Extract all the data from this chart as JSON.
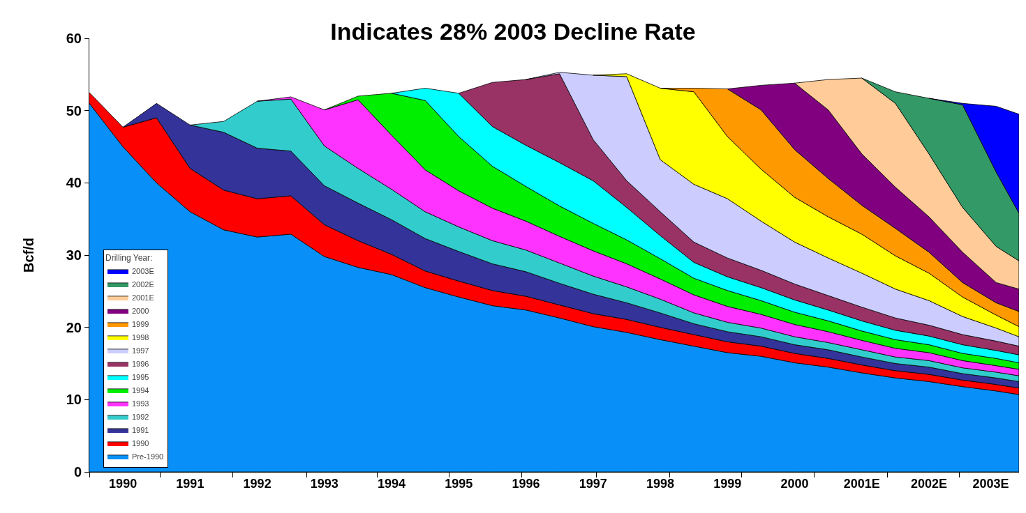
{
  "chart_data": {
    "type": "area",
    "stacked": true,
    "title": "Indicates 28% 2003 Decline Rate",
    "ylabel": "Bcf/d",
    "legend_title": "Drilling Year:",
    "legend": "bottom left",
    "grid": false,
    "x": [
      1990.0,
      1990.5,
      1991.0,
      1991.5,
      1992.0,
      1992.5,
      1993.0,
      1993.5,
      1994.0,
      1994.5,
      1995.0,
      1995.5,
      1996.0,
      1996.5,
      1997.0,
      1997.5,
      1998.0,
      1998.5,
      1999.0,
      1999.5,
      2000.0,
      2000.5,
      2001.0,
      2001.5,
      2002.0,
      2002.5,
      2003.0,
      2003.5,
      2003.84
    ],
    "xlim": [
      1990,
      2003.84
    ],
    "xticks": [
      {
        "value": 1990.5,
        "label": "1990"
      },
      {
        "value": 1991.5,
        "label": "1991"
      },
      {
        "value": 1992.5,
        "label": "1992"
      },
      {
        "value": 1993.5,
        "label": "1993"
      },
      {
        "value": 1994.5,
        "label": "1994"
      },
      {
        "value": 1995.5,
        "label": "1995"
      },
      {
        "value": 1996.5,
        "label": "1996"
      },
      {
        "value": 1997.5,
        "label": "1997"
      },
      {
        "value": 1998.5,
        "label": "1998"
      },
      {
        "value": 1999.5,
        "label": "1999"
      },
      {
        "value": 2000.5,
        "label": "2000"
      },
      {
        "value": 2001.5,
        "label": "2001E"
      },
      {
        "value": 2002.5,
        "label": "2002E"
      },
      {
        "value": 2003.42,
        "label": "2003E"
      },
      {
        "value": 1990,
        "label": null
      },
      {
        "value": 1991.05,
        "label": null
      },
      {
        "value": 1992.13,
        "label": null
      },
      {
        "value": 1993.24,
        "label": null
      },
      {
        "value": 1994.29,
        "label": null
      },
      {
        "value": 1995.36,
        "label": null
      },
      {
        "value": 1996.44,
        "label": null
      },
      {
        "value": 1997.55,
        "label": null
      },
      {
        "value": 1998.64,
        "label": null
      },
      {
        "value": 1999.71,
        "label": null
      },
      {
        "value": 2000.79,
        "label": null
      },
      {
        "value": 2001.88,
        "label": null
      },
      {
        "value": 2002.95,
        "label": null
      }
    ],
    "ylim": [
      0,
      60
    ],
    "yticks": [
      0,
      10,
      20,
      30,
      40,
      50,
      60
    ],
    "series": [
      {
        "name": "Pre-1990",
        "color": "#0890f8",
        "values": [
          51,
          45,
          40,
          36,
          33.5,
          32.5,
          32.9,
          29.8,
          28.3,
          27.3,
          25.5,
          24.2,
          23.0,
          22.4,
          21.3,
          20.1,
          19.3,
          18.3,
          17.4,
          16.5,
          16.0,
          15.1,
          14.5,
          13.7,
          13.0,
          12.5,
          11.8,
          11.2,
          10.7
        ]
      },
      {
        "name": "1990",
        "color": "#ff0000",
        "values": [
          1.5,
          2.7,
          9,
          6,
          5.5,
          5.3,
          5.3,
          4.4,
          3.7,
          2.8,
          2.3,
          2.2,
          2.1,
          1.9,
          1.8,
          1.8,
          1.8,
          1.7,
          1.6,
          1.5,
          1.4,
          1.3,
          1.2,
          1.1,
          1.0,
          1.0,
          0.9,
          0.9,
          0.9
        ]
      },
      {
        "name": "1991",
        "color": "#333399",
        "values": [
          null,
          0,
          2,
          6,
          8.0,
          7.0,
          6.2,
          5.4,
          5.2,
          4.8,
          4.5,
          4.1,
          3.7,
          3.4,
          3.0,
          2.7,
          2.3,
          2.0,
          1.5,
          1.4,
          1.3,
          1.2,
          1.2,
          1.1,
          1.0,
          1.0,
          0.9,
          0.9,
          0.9
        ]
      },
      {
        "name": "1992",
        "color": "#33cccc",
        "values": [
          null,
          null,
          null,
          0,
          1.5,
          6.5,
          7.2,
          5.5,
          4.8,
          4.2,
          3.7,
          3.4,
          3.2,
          3.0,
          2.8,
          2.5,
          2.2,
          1.9,
          1.5,
          1.3,
          1.2,
          1.1,
          1.0,
          1.0,
          0.9,
          0.9,
          0.8,
          0.8,
          0.8
        ]
      },
      {
        "name": "1993",
        "color": "#ff33ff",
        "values": [
          null,
          null,
          null,
          null,
          null,
          0,
          0.3,
          5.0,
          9.5,
          7.5,
          5.8,
          5.0,
          4.5,
          4.0,
          3.7,
          3.5,
          3.2,
          2.8,
          2.5,
          2.2,
          1.9,
          1.7,
          1.5,
          1.3,
          1.2,
          1.1,
          1.0,
          0.9,
          0.9
        ]
      },
      {
        "name": "1994",
        "color": "#00ee00",
        "values": [
          null,
          null,
          null,
          null,
          null,
          null,
          null,
          0,
          0.5,
          5.8,
          9.6,
          7.5,
          5.8,
          4.8,
          4.2,
          3.8,
          3.3,
          2.8,
          2.3,
          2.2,
          1.9,
          1.7,
          1.5,
          1.3,
          1.2,
          1.1,
          1.0,
          1.0,
          0.9
        ]
      },
      {
        "name": "1995",
        "color": "#00ffff",
        "values": [
          null,
          null,
          null,
          null,
          null,
          null,
          null,
          null,
          null,
          0,
          1.7,
          6.0,
          5.5,
          5.7,
          6.0,
          5.9,
          4.5,
          3.2,
          2.2,
          1.9,
          1.8,
          1.7,
          1.5,
          1.4,
          1.3,
          1.2,
          1.2,
          1.1,
          1.1
        ]
      },
      {
        "name": "1996",
        "color": "#993366",
        "values": [
          null,
          null,
          null,
          null,
          null,
          null,
          null,
          null,
          null,
          null,
          null,
          0,
          6.1,
          9.1,
          12.3,
          5.7,
          3.7,
          3.3,
          2.8,
          2.6,
          2.4,
          2.2,
          2.0,
          1.9,
          1.7,
          1.5,
          1.4,
          1.3,
          1.2
        ]
      },
      {
        "name": "1997",
        "color": "#ccccff",
        "values": [
          null,
          null,
          null,
          null,
          null,
          null,
          null,
          null,
          null,
          null,
          null,
          null,
          null,
          0,
          0.2,
          8.9,
          14.4,
          7.2,
          8.0,
          8.2,
          6.8,
          5.8,
          5.2,
          4.7,
          4.0,
          3.4,
          2.5,
          1.8,
          1.3
        ]
      },
      {
        "name": "1998",
        "color": "#ffff00",
        "values": [
          null,
          null,
          null,
          null,
          null,
          null,
          null,
          null,
          null,
          null,
          null,
          null,
          null,
          null,
          null,
          0,
          0.4,
          9.9,
          12.8,
          8.6,
          7.2,
          6.2,
          5.7,
          5.4,
          4.6,
          3.8,
          2.7,
          1.8,
          1.4
        ]
      },
      {
        "name": "1999",
        "color": "#ff9900",
        "values": [
          null,
          null,
          null,
          null,
          null,
          null,
          null,
          null,
          null,
          null,
          null,
          null,
          null,
          null,
          null,
          null,
          null,
          0,
          0.5,
          6.6,
          8.2,
          6.6,
          5.3,
          4.0,
          3.8,
          2.9,
          2.0,
          1.7,
          2.1
        ]
      },
      {
        "name": "2000",
        "color": "#800080",
        "values": [
          null,
          null,
          null,
          null,
          null,
          null,
          null,
          null,
          null,
          null,
          null,
          null,
          null,
          null,
          null,
          null,
          null,
          null,
          null,
          0,
          3.4,
          9.2,
          9.5,
          7.1,
          5.7,
          4.9,
          4.2,
          2.8,
          3.1
        ]
      },
      {
        "name": "2001E",
        "color": "#ffcc99",
        "values": [
          null,
          null,
          null,
          null,
          null,
          null,
          null,
          null,
          null,
          null,
          null,
          null,
          null,
          null,
          null,
          null,
          null,
          null,
          null,
          null,
          null,
          0,
          4.2,
          10.5,
          11.6,
          8.7,
          6.2,
          5.0,
          3.9
        ]
      },
      {
        "name": "2002E",
        "color": "#339966",
        "values": [
          null,
          null,
          null,
          null,
          null,
          null,
          null,
          null,
          null,
          null,
          null,
          null,
          null,
          null,
          null,
          null,
          null,
          null,
          null,
          null,
          null,
          null,
          null,
          0,
          1.6,
          7.7,
          14.2,
          10.3,
          6.6
        ]
      },
      {
        "name": "2003E",
        "color": "#0000ff",
        "values": [
          null,
          null,
          null,
          null,
          null,
          null,
          null,
          null,
          null,
          null,
          null,
          null,
          null,
          null,
          null,
          null,
          null,
          null,
          null,
          null,
          null,
          null,
          null,
          null,
          null,
          0,
          0.2,
          9.1,
          13.7
        ]
      }
    ]
  }
}
